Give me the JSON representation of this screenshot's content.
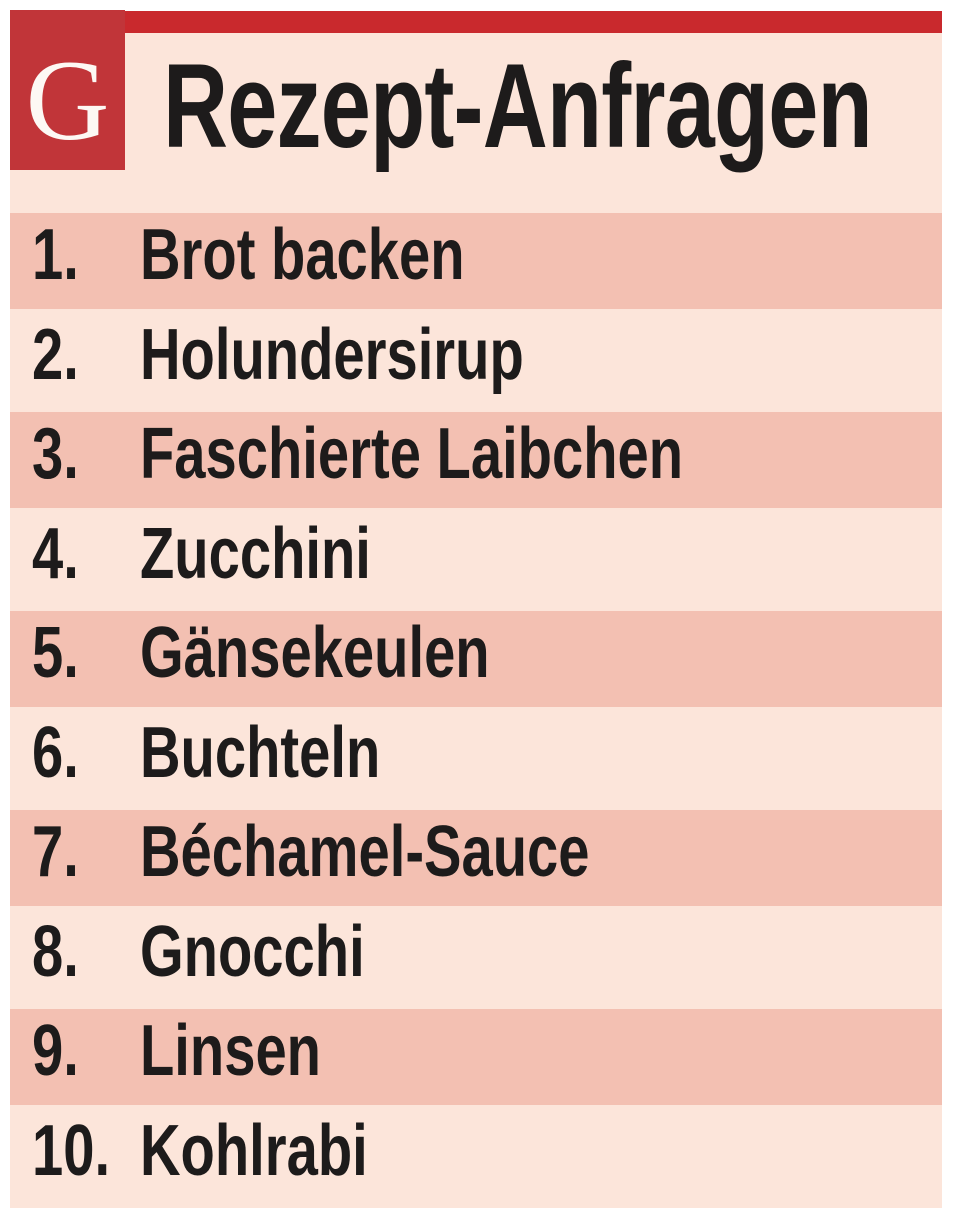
{
  "masthead": {
    "logo_letter": "G",
    "title": "Rezept-Anfragen"
  },
  "chart_data": {
    "type": "table",
    "title": "Rezept-Anfragen",
    "columns": [
      "rank",
      "recipe"
    ],
    "categories": [
      "1.",
      "2.",
      "3.",
      "4.",
      "5.",
      "6.",
      "7.",
      "8.",
      "9.",
      "10."
    ],
    "values": [
      "Brot backen",
      "Holundersirup",
      "Faschierte Laibchen",
      "Zucchini",
      "Gänsekeulen",
      "Buchteln",
      "Béchamel-Sauce",
      "Gnocchi",
      "Linsen",
      "Kohlrabi"
    ],
    "layout": "zebra-striped ranking list, dark stripe on odd rows, no grid, no legend"
  },
  "ranking": {
    "items": [
      {
        "rank": "1.",
        "label": "Brot backen"
      },
      {
        "rank": "2.",
        "label": "Holundersirup"
      },
      {
        "rank": "3.",
        "label": "Faschierte Laibchen"
      },
      {
        "rank": "4.",
        "label": "Zucchini"
      },
      {
        "rank": "5.",
        "label": "Gänsekeulen"
      },
      {
        "rank": "6.",
        "label": "Buchteln"
      },
      {
        "rank": "7.",
        "label": "Béchamel-Sauce"
      },
      {
        "rank": "8.",
        "label": "Gnocchi"
      },
      {
        "rank": "9.",
        "label": "Linsen"
      },
      {
        "rank": "10.",
        "label": "Kohlrabi"
      }
    ]
  },
  "colors": {
    "bar_red": "#c9292d",
    "logo_red": "#c13539",
    "logo_letter_color": "#fdf8f4",
    "row_dark": "#f3c0b2",
    "row_light": "#fce5da",
    "ink": "#1d1b1b"
  }
}
